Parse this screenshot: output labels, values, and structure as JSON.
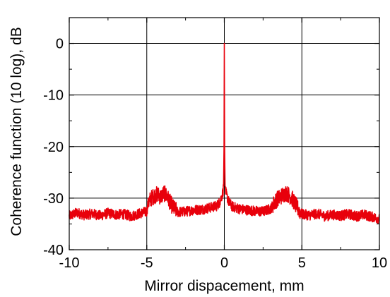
{
  "chart_data": {
    "type": "line",
    "title": "",
    "xlabel": "Mirror dispacement, mm",
    "ylabel": "Coherence function (10 log), dB",
    "xlim": [
      -10,
      10
    ],
    "ylim": [
      -40,
      5
    ],
    "x_ticks": [
      -10,
      -5,
      0,
      5,
      10
    ],
    "x_tick_labels": [
      "-10",
      "-5",
      "0",
      "5",
      "10"
    ],
    "y_ticks": [
      0,
      -10,
      -20,
      -30,
      -40
    ],
    "y_tick_labels": [
      "0",
      "-10",
      "-20",
      "-30",
      "-40"
    ],
    "grid": true,
    "legend": "none",
    "line_color": "#e8000b",
    "series": [
      {
        "x": [
          -10,
          -9.5,
          -9,
          -8.5,
          -8,
          -7.5,
          -7,
          -6.5,
          -6,
          -5.5,
          -5.0,
          -4.9,
          -4.7,
          -4.5,
          -4.3,
          -4.1,
          -3.9,
          -3.7,
          -3.5,
          -3.3,
          -3.1,
          -3.0,
          -2.5,
          -2,
          -1.5,
          -1,
          -0.5,
          -0.3,
          -0.15,
          -0.08,
          -0.03,
          0.0,
          0.03,
          0.08,
          0.15,
          0.3,
          0.5,
          1,
          1.5,
          2,
          2.5,
          3,
          3.2,
          3.4,
          3.6,
          3.8,
          4.0,
          4.2,
          4.4,
          4.6,
          4.8,
          5.0,
          5.5,
          6,
          6.5,
          7,
          7.5,
          8,
          8.5,
          9,
          9.5,
          10
        ],
        "y": [
          -33.5,
          -32.8,
          -33.3,
          -33.0,
          -33.4,
          -32.9,
          -33.2,
          -33.1,
          -33.5,
          -33.0,
          -32.6,
          -30.8,
          -30.0,
          -29.5,
          -29.2,
          -29.8,
          -29.0,
          -29.6,
          -30.8,
          -31.8,
          -32.4,
          -32.7,
          -32.6,
          -32.3,
          -32.2,
          -31.9,
          -31.5,
          -30.8,
          -29.5,
          -28.6,
          -27.0,
          0.0,
          -27.0,
          -28.6,
          -29.5,
          -30.8,
          -31.6,
          -32.1,
          -32.3,
          -32.5,
          -32.6,
          -32.0,
          -31.0,
          -30.2,
          -29.8,
          -29.3,
          -29.0,
          -29.5,
          -30.2,
          -31.3,
          -32.3,
          -33.1,
          -33.3,
          -33.0,
          -33.5,
          -33.2,
          -33.4,
          -33.1,
          -33.5,
          -33.2,
          -33.6,
          -34.0
        ]
      }
    ]
  }
}
